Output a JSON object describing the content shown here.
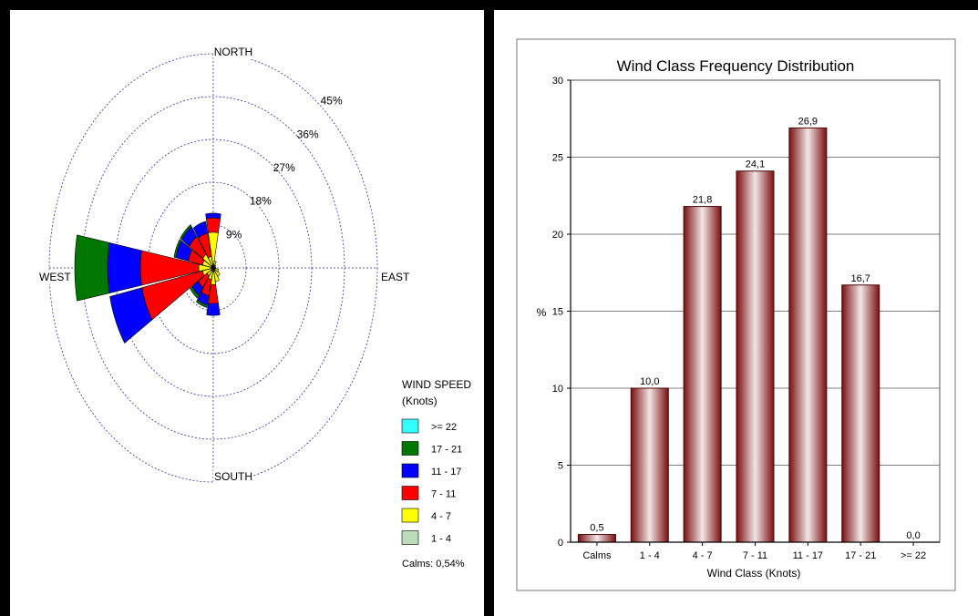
{
  "chart_data": [
    {
      "type": "wind-rose",
      "directions": {
        "north": "NORTH",
        "east": "EAST",
        "south": "SOUTH",
        "west": "WEST"
      },
      "ring_labels": [
        "9%",
        "18%",
        "27%",
        "36%",
        "45%"
      ],
      "rmax_percent": 45,
      "legend": {
        "title_line1": "WIND SPEED",
        "title_line2": "(Knots)",
        "placement": "bottom-right",
        "classes": [
          {
            "label": ">= 22",
            "color": "#33ffff"
          },
          {
            "label": "17 - 21",
            "color": "#007700"
          },
          {
            "label": "11 - 17",
            "color": "#0000ff"
          },
          {
            "label": "7 - 11",
            "color": "#ff0000"
          },
          {
            "label": "4 - 7",
            "color": "#ffff00"
          },
          {
            "label": "1 - 4",
            "color": "#bbddbb"
          }
        ]
      },
      "calms_text": "Calms: 0,54%",
      "sectors": [
        {
          "center_deg": 0,
          "cumulative": [
            0.8,
            7.5,
            10.5,
            11.5,
            11.5,
            11.5
          ]
        },
        {
          "center_deg": 22.5,
          "cumulative": [
            0.5,
            1.5,
            1.5,
            1.5,
            1.5,
            1.5
          ]
        },
        {
          "center_deg": 45,
          "cumulative": [
            0.3,
            0.8,
            0.8,
            0.8,
            0.8,
            0.8
          ]
        },
        {
          "center_deg": 67.5,
          "cumulative": [
            0.3,
            0.6,
            0.6,
            0.6,
            0.6,
            0.6
          ]
        },
        {
          "center_deg": 90,
          "cumulative": [
            0.4,
            0.7,
            0.7,
            0.7,
            0.7,
            0.7
          ]
        },
        {
          "center_deg": 112.5,
          "cumulative": [
            0.5,
            1.5,
            1.5,
            1.5,
            1.5,
            1.5
          ]
        },
        {
          "center_deg": 135,
          "cumulative": [
            0.6,
            2.2,
            2.2,
            2.2,
            2.2,
            2.2
          ]
        },
        {
          "center_deg": 157.5,
          "cumulative": [
            0.8,
            3.0,
            3.0,
            3.0,
            3.0,
            3.0
          ]
        },
        {
          "center_deg": 180,
          "cumulative": [
            0.9,
            3.5,
            7.5,
            10.0,
            10.0,
            10.0
          ]
        },
        {
          "center_deg": 202.5,
          "cumulative": [
            0.8,
            2.5,
            6.0,
            8.0,
            8.5,
            8.5
          ]
        },
        {
          "center_deg": 225,
          "cumulative": [
            0.7,
            2.0,
            5.0,
            7.0,
            7.7,
            7.7
          ]
        },
        {
          "center_deg": 247.5,
          "cumulative": [
            0.6,
            3.0,
            20.0,
            29.0,
            29.0,
            29.0
          ]
        },
        {
          "center_deg": 270,
          "cumulative": [
            0.7,
            4.0,
            20.0,
            29.0,
            38.0,
            38.0
          ]
        },
        {
          "center_deg": 292.5,
          "cumulative": [
            0.6,
            3.0,
            7.0,
            10.5,
            11.0,
            11.0
          ]
        },
        {
          "center_deg": 315,
          "cumulative": [
            0.6,
            3.5,
            8.0,
            10.5,
            11.0,
            11.0
          ]
        },
        {
          "center_deg": 337.5,
          "cumulative": [
            0.5,
            2.5,
            7.5,
            10.0,
            10.0,
            10.0
          ]
        }
      ]
    },
    {
      "type": "bar",
      "title": "Wind Class Frequency Distribution",
      "xlabel": "Wind Class (Knots)",
      "ylabel": "%",
      "categories": [
        "Calms",
        "1 - 4",
        "4 - 7",
        "7 - 11",
        "11 - 17",
        "17 - 21",
        ">= 22"
      ],
      "values": [
        0.5,
        10.0,
        21.8,
        24.1,
        26.9,
        16.7,
        0.0
      ],
      "value_labels": [
        "0,5",
        "10,0",
        "21,8",
        "24,1",
        "26,9",
        "16,7",
        "0,0"
      ],
      "ylim": [
        0,
        30
      ],
      "yticks": [
        0,
        5,
        10,
        15,
        20,
        25,
        30
      ],
      "grid": true,
      "bar_color": "#8b1a1a"
    }
  ]
}
